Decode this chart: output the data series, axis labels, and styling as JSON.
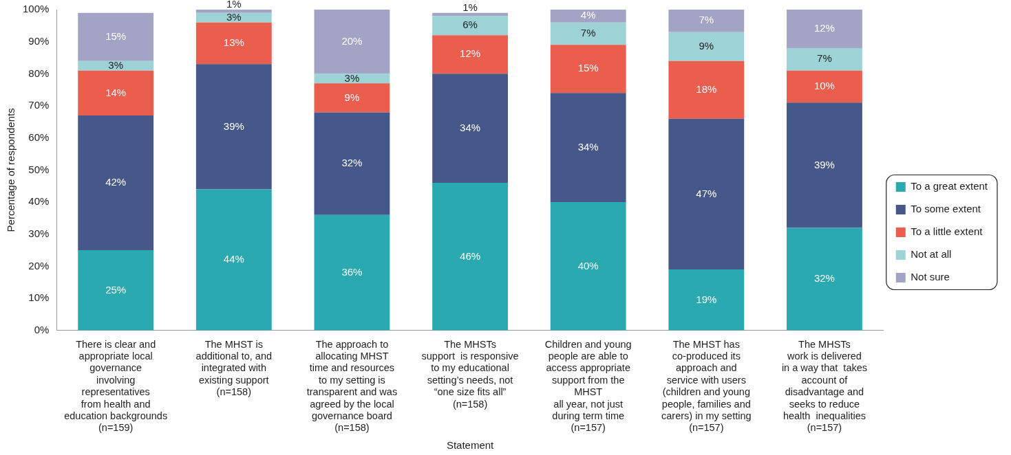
{
  "chart_data": {
    "type": "bar",
    "stacked": true,
    "xlabel": "Statement",
    "ylabel": "Percentage of respondents",
    "categories": [
      "There is clear and\nappropriate local\ngovernance\ninvolving\nrepresentatives\nfrom health and\neducation backgrounds\n(n=159)",
      "The MHST is\nadditional to, and\nintegrated with\nexisting support\n(n=158)",
      "The approach to\nallocating MHST\ntime and resources\nto my setting is\ntransparent and was\nagreed by the local\ngovernance board\n(n=158)",
      "The MHSTs\nsupport  is responsive\nto my educational\nsetting’s needs, not\n“one size fits all”\n(n=158)",
      "Children and young\npeople are able to\naccess appropriate\nsupport from the\nMHST\nall year, not just\nduring term time\n(n=157)",
      "The MHST has\nco-produced its\napproach and\nservice with users\n(children and young\npeople, families and\ncarers) in my setting\n(n=157)",
      "The MHSTs\nwork is delivered\nin a way that  takes\naccount of\ndisadvantage and\nseeks to reduce\nhealth  inequalities\n(n=157)"
    ],
    "series": [
      {
        "name": "To a great extent",
        "color": "#2aa9b1",
        "values": [
          25,
          44,
          36,
          46,
          40,
          19,
          32
        ],
        "value_labels": [
          "25%",
          "44%",
          "36%",
          "46%",
          "40%",
          "19%",
          "32%"
        ]
      },
      {
        "name": "To some extent",
        "color": "#46578a",
        "values": [
          42,
          39,
          32,
          34,
          34,
          47,
          39
        ],
        "value_labels": [
          "42%",
          "39%",
          "32%",
          "34%",
          "34%",
          "47%",
          "39%"
        ]
      },
      {
        "name": "To a little extent",
        "color": "#eb5e4e",
        "values": [
          14,
          13,
          9,
          12,
          15,
          18,
          10
        ],
        "value_labels": [
          "14%",
          "13%",
          "9%",
          "12%",
          "15%",
          "18%",
          "10%"
        ]
      },
      {
        "name": "Not at all",
        "color": "#9dd3d6",
        "values": [
          3,
          3,
          3,
          6,
          7,
          9,
          7
        ],
        "value_labels": [
          "3%",
          "3%",
          "3%",
          "6%",
          "7%",
          "9%",
          "7%"
        ]
      },
      {
        "name": "Not sure",
        "color": "#a3a3c5",
        "values": [
          15,
          1,
          20,
          1,
          4,
          7,
          12
        ],
        "value_labels": [
          "15%",
          "1%",
          "20%",
          "1%",
          "4%",
          "7%",
          "12%"
        ]
      }
    ],
    "ylim": [
      0,
      100
    ],
    "yticks": [
      {
        "value": 0,
        "label": "0%"
      },
      {
        "value": 10,
        "label": "10%"
      },
      {
        "value": 20,
        "label": "20%"
      },
      {
        "value": 30,
        "label": "30%"
      },
      {
        "value": 40,
        "label": "40%"
      },
      {
        "value": 50,
        "label": "50%"
      },
      {
        "value": 60,
        "label": "60%"
      },
      {
        "value": 70,
        "label": "70%"
      },
      {
        "value": 80,
        "label": "80%"
      },
      {
        "value": 90,
        "label": "90%"
      },
      {
        "value": 100,
        "label": "100%"
      }
    ],
    "grid": false,
    "legend": "right"
  }
}
